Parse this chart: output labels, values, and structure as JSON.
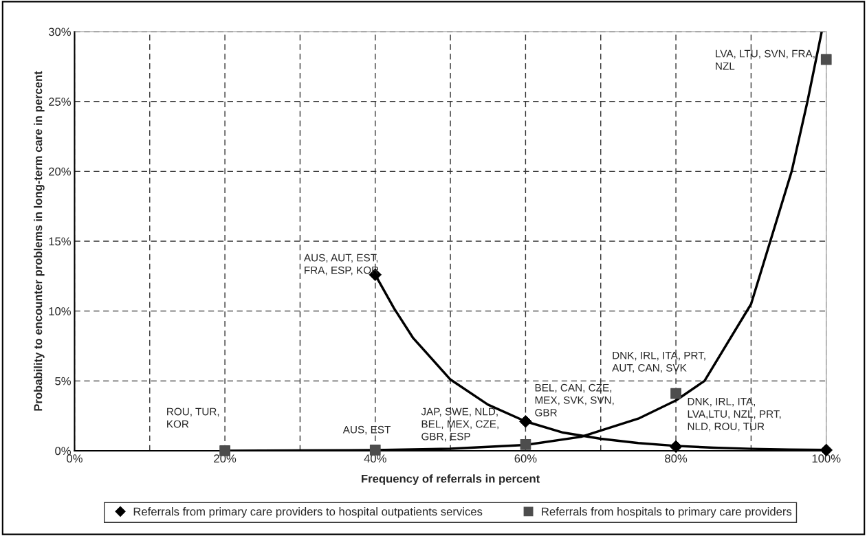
{
  "chart_data": {
    "type": "scatter",
    "xlabel": "Frequency of referrals in percent",
    "ylabel": "Probability to encounter problems in long-term care in percent",
    "xlim": [
      0,
      100
    ],
    "ylim": [
      0,
      30
    ],
    "xticks": [
      {
        "value": 0,
        "label": "0%"
      },
      {
        "value": 10,
        "label": null
      },
      {
        "value": 20,
        "label": "20%"
      },
      {
        "value": 30,
        "label": null
      },
      {
        "value": 40,
        "label": "40%"
      },
      {
        "value": 50,
        "label": null
      },
      {
        "value": 60,
        "label": "60%"
      },
      {
        "value": 70,
        "label": null
      },
      {
        "value": 80,
        "label": "80%"
      },
      {
        "value": 90,
        "label": null
      },
      {
        "value": 100,
        "label": "100%"
      }
    ],
    "yticks": [
      {
        "value": 0,
        "label": "0%"
      },
      {
        "value": 5,
        "label": "5%"
      },
      {
        "value": 10,
        "label": "10%"
      },
      {
        "value": 15,
        "label": "15%"
      },
      {
        "value": 20,
        "label": "20%"
      },
      {
        "value": 25,
        "label": "25%"
      },
      {
        "value": 30,
        "label": "30%"
      }
    ],
    "grid": true,
    "legend": "bottom",
    "series": [
      {
        "name": "Referrals from primary care providers to hospital outpatients services",
        "marker": "diamond",
        "color": "#000000",
        "x": [
          40,
          60,
          80,
          100
        ],
        "values": [
          12.6,
          2.1,
          0.3,
          0.05
        ]
      },
      {
        "name": "Referrals from hospitals to primary care providers",
        "marker": "square",
        "color": "#4d4d4d",
        "x": [
          20,
          40,
          60,
          80,
          100
        ],
        "values": [
          0,
          0.05,
          0.45,
          4.1,
          28
        ]
      },
      {
        "type": "line",
        "marker": "none",
        "line_style": "solid",
        "color": "#000000",
        "x": [
          40,
          42.5,
          45,
          50,
          55,
          60,
          65,
          70,
          75,
          80,
          85,
          90,
          95,
          100
        ],
        "values": [
          12.6,
          10.2,
          8.1,
          5.1,
          3.3,
          2.1,
          1.3,
          0.86,
          0.55,
          0.35,
          0.22,
          0.14,
          0.09,
          0.06
        ]
      },
      {
        "type": "line",
        "marker": "none",
        "line_style": "solid",
        "color": "#000000",
        "x": [
          20,
          30,
          40,
          50,
          60,
          67.4,
          75,
          80,
          83.8,
          90,
          95.4,
          97.5,
          99.4
        ],
        "values": [
          0,
          0.02,
          0.05,
          0.15,
          0.42,
          1.0,
          2.3,
          3.6,
          5,
          10.5,
          20,
          25,
          30
        ]
      }
    ],
    "annotations": [
      "ROU, TUR,\nKOR",
      "AUS, EST",
      "JAP, SWE, NLD,\nBEL, MEX, CZE,\nGBR, ESP",
      "BEL, CAN, CZE,\nMEX, SVK, SVN,\nGBR",
      "DNK, IRL, ITA,\nLVA,LTU, NZL, PRT,\nNLD, ROU, TUR",
      "DNK, IRL, ITA, PRT,\nAUT, CAN, SVK",
      "AUS, AUT, EST,\nFRA, ESP, KOR",
      "LVA, LTU, SVN, FRA,\nNZL"
    ]
  }
}
